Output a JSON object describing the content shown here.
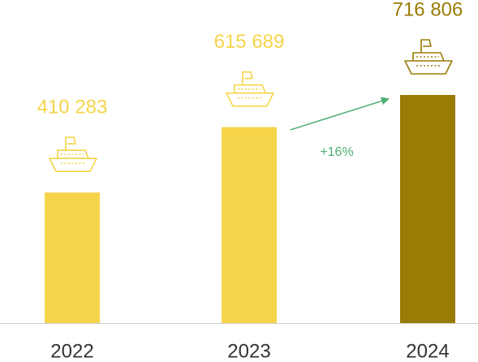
{
  "chart_data": {
    "type": "bar",
    "categories": [
      "2022",
      "2023",
      "2024"
    ],
    "values": [
      410283,
      615689,
      716806
    ],
    "value_labels": [
      "410 283",
      "615 689",
      "716 806"
    ],
    "colors": [
      "#f5d44a",
      "#f5d44a",
      "#9a7b05"
    ],
    "annotation": "+16%",
    "annotation_color": "#4caf74"
  }
}
